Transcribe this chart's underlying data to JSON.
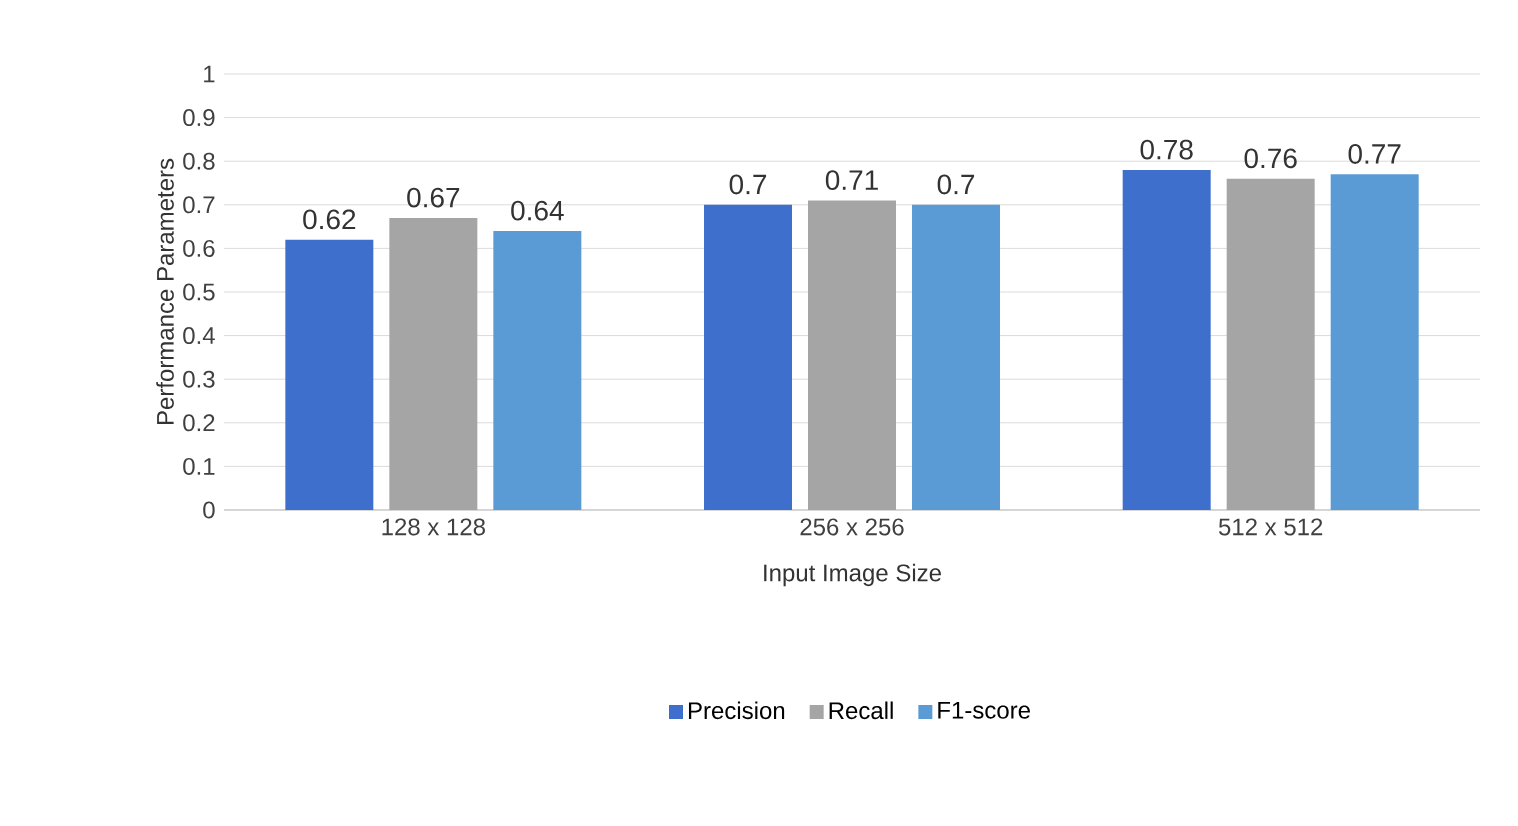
{
  "chart_data": {
    "type": "bar",
    "xlabel": "Input Image Size",
    "ylabel": "Performance  Parameters",
    "categories": [
      "128 x 128",
      "256 x 256",
      "512 x 512"
    ],
    "series": [
      {
        "name": "Precision",
        "color": "#3f6fcc",
        "values": [
          0.62,
          0.7,
          0.78
        ]
      },
      {
        "name": "Recall",
        "color": "#a5a5a5",
        "values": [
          0.67,
          0.71,
          0.76
        ]
      },
      {
        "name": "F1-score",
        "color": "#5b9bd5",
        "values": [
          0.64,
          0.7,
          0.77
        ]
      }
    ],
    "ylim": [
      0,
      1
    ],
    "yticks": [
      0,
      0.1,
      0.2,
      0.3,
      0.4,
      0.5,
      0.6,
      0.7,
      0.8,
      0.9,
      1
    ],
    "grid": "y",
    "legend": "bottom",
    "data_labels": true
  }
}
